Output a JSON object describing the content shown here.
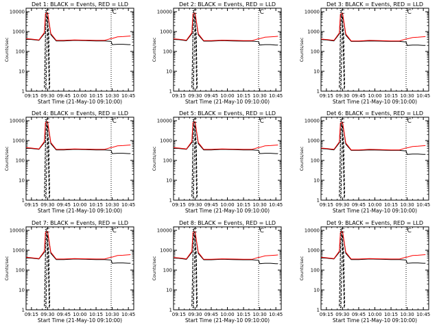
{
  "chart_data": {
    "type": "line",
    "layout": "3x3 grid",
    "xlabel": "Start Time (21-May-10 09:10:00)",
    "ylabel": "Counts/sec",
    "x_tick_labels": [
      "09:15",
      "09:30",
      "09:45",
      "10:00",
      "10:15",
      "10:30",
      "10:45"
    ],
    "x_tick_minutes": [
      5,
      20,
      35,
      50,
      65,
      80,
      95
    ],
    "xlim_minutes": [
      0,
      100
    ],
    "y_scale": "log",
    "ylim": [
      1,
      15000
    ],
    "y_tick_labels": [
      "1",
      "10",
      "100",
      "1000",
      "10000"
    ],
    "y_tick_values": [
      1,
      10,
      100,
      1000,
      10000
    ],
    "dotted_vlines_minutes": [
      18,
      79
    ],
    "legend_text": "BLACK = Events, RED = LLD",
    "series_styles": {
      "events": {
        "name": "Events",
        "color": "#000000"
      },
      "lld": {
        "name": "LLD",
        "color": "#ff0000"
      },
      "dashed": {
        "name": "dashed",
        "color": "#000000"
      }
    },
    "panels": [
      {
        "title": "Det 1: BLACK = Events, RED = LLD",
        "marker": "C",
        "lld": {
          "x": [
            0,
            5,
            12,
            17,
            18,
            20,
            23,
            28,
            35,
            45,
            55,
            65,
            73,
            79,
            80,
            85,
            90,
            95,
            97
          ],
          "y": [
            440,
            420,
            380,
            900,
            8000,
            9000,
            800,
            360,
            360,
            380,
            370,
            360,
            360,
            450,
            450,
            540,
            560,
            590,
            600
          ]
        },
        "events": {
          "x": [
            0,
            5,
            12,
            17,
            18,
            20,
            23,
            28,
            35,
            45,
            55,
            65,
            73,
            79,
            80,
            85,
            90,
            95,
            97
          ],
          "y": [
            410,
            400,
            360,
            800,
            7000,
            8000,
            700,
            340,
            340,
            360,
            350,
            340,
            340,
            320,
            220,
            230,
            230,
            220,
            220
          ]
        },
        "dashed": [
          {
            "x": [
              17,
              18,
              19,
              21,
              22
            ],
            "y": [
              1.5,
              700,
              7000,
              900,
              1.5
            ]
          },
          {
            "x": [
              18.5,
              20,
              21.5
            ],
            "y": [
              1.2,
              6000,
              1.2
            ]
          }
        ]
      },
      {
        "title": "Det 2: BLACK = Events, RED = LLD",
        "marker": "C",
        "lld": {
          "x": [
            0,
            5,
            12,
            17,
            18,
            20,
            23,
            28,
            35,
            45,
            55,
            65,
            73,
            79,
            80,
            85,
            90,
            95,
            97
          ],
          "y": [
            430,
            410,
            370,
            880,
            7800,
            8800,
            780,
            350,
            350,
            370,
            360,
            350,
            350,
            440,
            440,
            520,
            540,
            570,
            580
          ]
        },
        "events": {
          "x": [
            0,
            5,
            12,
            17,
            18,
            20,
            23,
            28,
            35,
            45,
            55,
            65,
            73,
            79,
            80,
            85,
            90,
            95,
            97
          ],
          "y": [
            400,
            390,
            350,
            780,
            6800,
            7800,
            680,
            330,
            330,
            350,
            340,
            330,
            330,
            310,
            210,
            220,
            220,
            210,
            210
          ]
        },
        "dashed": [
          {
            "x": [
              17,
              18,
              19,
              21,
              22
            ],
            "y": [
              1.5,
              700,
              7000,
              900,
              1.5
            ]
          },
          {
            "x": [
              18.5,
              20,
              21.5
            ],
            "y": [
              1.2,
              6000,
              1.2
            ]
          }
        ]
      },
      {
        "title": "Det 3: BLACK = Events, RED = LLD",
        "marker": "C",
        "lld": {
          "x": [
            0,
            5,
            12,
            17,
            18,
            20,
            23,
            28,
            35,
            45,
            55,
            65,
            73,
            79,
            80,
            85,
            90,
            95,
            97
          ],
          "y": [
            420,
            400,
            360,
            860,
            7600,
            8600,
            760,
            340,
            340,
            360,
            350,
            340,
            340,
            430,
            430,
            500,
            520,
            550,
            560
          ]
        },
        "events": {
          "x": [
            0,
            5,
            12,
            17,
            18,
            20,
            23,
            28,
            35,
            45,
            55,
            65,
            73,
            79,
            80,
            85,
            90,
            95,
            97
          ],
          "y": [
            390,
            380,
            340,
            760,
            6600,
            7600,
            660,
            320,
            320,
            340,
            330,
            320,
            320,
            300,
            200,
            210,
            210,
            200,
            200
          ]
        },
        "dashed": [
          {
            "x": [
              17,
              18,
              19,
              21,
              22
            ],
            "y": [
              1.5,
              700,
              7000,
              900,
              1.5
            ]
          },
          {
            "x": [
              18.5,
              20,
              21.5
            ],
            "y": [
              1.2,
              6000,
              1.2
            ]
          }
        ]
      },
      {
        "title": "Det 4: BLACK = Events, RED = LLD",
        "marker": "C",
        "lld": {
          "x": [
            0,
            5,
            12,
            17,
            18,
            20,
            23,
            28,
            35,
            45,
            55,
            65,
            73,
            79,
            80,
            85,
            90,
            95,
            97
          ],
          "y": [
            440,
            420,
            380,
            900,
            8000,
            9000,
            800,
            360,
            360,
            380,
            370,
            360,
            360,
            450,
            450,
            540,
            560,
            590,
            600
          ]
        },
        "events": {
          "x": [
            0,
            5,
            12,
            17,
            18,
            20,
            23,
            28,
            35,
            45,
            55,
            65,
            73,
            79,
            80,
            85,
            90,
            95,
            97
          ],
          "y": [
            410,
            400,
            360,
            800,
            7000,
            8000,
            700,
            340,
            340,
            360,
            350,
            340,
            340,
            320,
            220,
            230,
            230,
            220,
            220
          ]
        },
        "dashed": [
          {
            "x": [
              17,
              18,
              19,
              21,
              22
            ],
            "y": [
              1.5,
              700,
              7000,
              900,
              1.5
            ]
          },
          {
            "x": [
              18.5,
              20,
              21.5
            ],
            "y": [
              1.2,
              6000,
              1.2
            ]
          }
        ]
      },
      {
        "title": "Det 5: BLACK = Events, RED = LLD",
        "marker": "C",
        "lld": {
          "x": [
            0,
            5,
            12,
            17,
            18,
            20,
            23,
            28,
            35,
            45,
            55,
            65,
            73,
            79,
            80,
            85,
            90,
            95,
            97
          ],
          "y": [
            440,
            420,
            380,
            900,
            8000,
            9000,
            800,
            360,
            360,
            380,
            370,
            360,
            360,
            450,
            450,
            540,
            560,
            590,
            600
          ]
        },
        "events": {
          "x": [
            0,
            5,
            12,
            17,
            18,
            20,
            23,
            28,
            35,
            45,
            55,
            65,
            73,
            79,
            80,
            85,
            90,
            95,
            97
          ],
          "y": [
            410,
            400,
            360,
            800,
            7000,
            8000,
            700,
            340,
            340,
            360,
            350,
            340,
            340,
            320,
            220,
            230,
            230,
            220,
            220
          ]
        },
        "dashed": [
          {
            "x": [
              17,
              18,
              19,
              21,
              22
            ],
            "y": [
              1.5,
              700,
              7000,
              900,
              1.5
            ]
          },
          {
            "x": [
              18.5,
              20,
              21.5
            ],
            "y": [
              1.2,
              6000,
              1.2
            ]
          }
        ]
      },
      {
        "title": "Det 6: BLACK = Events, RED = LLD",
        "marker": "C",
        "lld": {
          "x": [
            0,
            5,
            12,
            17,
            18,
            20,
            23,
            28,
            35,
            45,
            55,
            65,
            73,
            79,
            80,
            85,
            90,
            95,
            97
          ],
          "y": [
            420,
            400,
            360,
            860,
            7600,
            8600,
            760,
            340,
            340,
            360,
            350,
            340,
            340,
            430,
            430,
            500,
            520,
            550,
            560
          ]
        },
        "events": {
          "x": [
            0,
            5,
            12,
            17,
            18,
            20,
            23,
            28,
            35,
            45,
            55,
            65,
            73,
            79,
            80,
            85,
            90,
            95,
            97
          ],
          "y": [
            390,
            380,
            340,
            760,
            6600,
            7600,
            660,
            320,
            320,
            340,
            330,
            320,
            320,
            300,
            200,
            210,
            210,
            200,
            200
          ]
        },
        "dashed": [
          {
            "x": [
              17,
              18,
              19,
              21,
              22
            ],
            "y": [
              1.5,
              700,
              7000,
              900,
              1.5
            ]
          },
          {
            "x": [
              18.5,
              20,
              21.5
            ],
            "y": [
              1.2,
              6000,
              1.2
            ]
          }
        ]
      },
      {
        "title": "Det 7: BLACK = Events, RED = LLD",
        "marker": "C",
        "lld": {
          "x": [
            0,
            5,
            12,
            17,
            18,
            20,
            23,
            28,
            35,
            45,
            55,
            65,
            73,
            79,
            80,
            85,
            90,
            95,
            97
          ],
          "y": [
            440,
            420,
            380,
            900,
            8000,
            9000,
            800,
            360,
            360,
            380,
            370,
            360,
            360,
            450,
            450,
            540,
            560,
            590,
            600
          ]
        },
        "events": {
          "x": [
            0,
            5,
            12,
            17,
            18,
            20,
            23,
            28,
            35,
            45,
            55,
            65,
            73,
            79,
            80,
            85,
            90,
            95,
            97
          ],
          "y": [
            410,
            400,
            360,
            800,
            7000,
            8000,
            700,
            340,
            340,
            360,
            350,
            340,
            340,
            320,
            220,
            230,
            230,
            220,
            220
          ]
        },
        "dashed": [
          {
            "x": [
              17,
              18,
              19,
              21,
              22
            ],
            "y": [
              1.5,
              700,
              7000,
              900,
              1.5
            ]
          },
          {
            "x": [
              18.5,
              20,
              21.5
            ],
            "y": [
              1.2,
              6000,
              1.2
            ]
          }
        ]
      },
      {
        "title": "Det 8: BLACK = Events, RED = LLD",
        "marker": "C",
        "lld": {
          "x": [
            0,
            5,
            12,
            17,
            18,
            20,
            23,
            28,
            35,
            45,
            55,
            65,
            73,
            79,
            80,
            85,
            90,
            95,
            97
          ],
          "y": [
            430,
            410,
            370,
            880,
            7800,
            8800,
            780,
            350,
            350,
            370,
            360,
            350,
            350,
            440,
            440,
            520,
            540,
            570,
            580
          ]
        },
        "events": {
          "x": [
            0,
            5,
            12,
            17,
            18,
            20,
            23,
            28,
            35,
            45,
            55,
            65,
            73,
            79,
            80,
            85,
            90,
            95,
            97
          ],
          "y": [
            400,
            390,
            350,
            780,
            6800,
            7800,
            680,
            330,
            330,
            350,
            340,
            330,
            330,
            310,
            210,
            220,
            220,
            210,
            210
          ]
        },
        "dashed": [
          {
            "x": [
              17,
              18,
              19,
              21,
              22
            ],
            "y": [
              1.5,
              700,
              7000,
              900,
              1.5
            ]
          },
          {
            "x": [
              18.5,
              20,
              21.5
            ],
            "y": [
              1.2,
              6000,
              1.2
            ]
          }
        ]
      },
      {
        "title": "Det 9: BLACK = Events, RED = LLD",
        "marker": "C",
        "lld": {
          "x": [
            0,
            5,
            12,
            17,
            18,
            20,
            23,
            28,
            35,
            45,
            55,
            65,
            73,
            79,
            80,
            85,
            90,
            95,
            97
          ],
          "y": [
            440,
            420,
            380,
            900,
            8000,
            9000,
            800,
            360,
            360,
            380,
            370,
            360,
            360,
            450,
            450,
            540,
            560,
            590,
            600
          ]
        },
        "events": {
          "x": [
            0,
            5,
            12,
            17,
            18,
            20,
            23,
            28,
            35,
            45,
            55,
            65,
            73,
            79,
            80,
            85,
            90,
            95,
            97
          ],
          "y": [
            410,
            400,
            360,
            800,
            7000,
            8000,
            700,
            340,
            340,
            360,
            350,
            340,
            340,
            320,
            220,
            230,
            230,
            220,
            220
          ]
        },
        "dashed": [
          {
            "x": [
              17,
              18,
              19,
              21,
              22
            ],
            "y": [
              1.5,
              700,
              7000,
              900,
              1.5
            ]
          },
          {
            "x": [
              18.5,
              20,
              21.5
            ],
            "y": [
              1.2,
              6000,
              1.2
            ]
          }
        ]
      }
    ]
  }
}
